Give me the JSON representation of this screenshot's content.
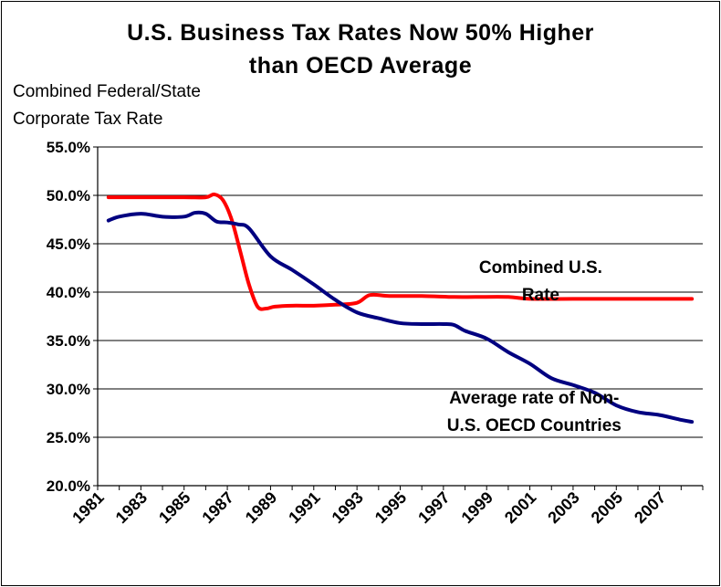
{
  "chart_data": {
    "type": "line",
    "title": "U.S. Business Tax Rates Now 50% Higher\nthan OECD Average",
    "ylabel": "Combined Federal/State\nCorporate Tax Rate",
    "xlabel": "",
    "ylim": [
      20,
      55
    ],
    "xlim": [
      1981,
      2009
    ],
    "y_ticks": [
      "20.0%",
      "25.0%",
      "30.0%",
      "35.0%",
      "40.0%",
      "45.0%",
      "50.0%",
      "55.0%"
    ],
    "y_tick_values": [
      20,
      25,
      30,
      35,
      40,
      45,
      50,
      55
    ],
    "x_ticks": [
      "1981",
      "1983",
      "1985",
      "1987",
      "1989",
      "1991",
      "1993",
      "1995",
      "1997",
      "1999",
      "2001",
      "2003",
      "2005",
      "2007"
    ],
    "x_tick_values": [
      1981,
      1983,
      1985,
      1987,
      1989,
      1991,
      1993,
      1995,
      1997,
      1999,
      2001,
      2003,
      2005,
      2007
    ],
    "grid": "horizontal",
    "series": [
      {
        "name": "Combined U.S. Rate",
        "color": "#ff0000",
        "x": [
          1981.5,
          1983,
          1985,
          1986,
          1986.4,
          1986.8,
          1987.2,
          1987.6,
          1988,
          1988.4,
          1988.8,
          1989.2,
          1990,
          1991,
          1992,
          1993,
          1993.6,
          1994.5,
          1996,
          1997.5,
          1998.5,
          2000,
          2001,
          2003,
          2005,
          2007,
          2008.5
        ],
        "values": [
          49.8,
          49.8,
          49.8,
          49.8,
          50.1,
          49.5,
          47.5,
          44.2,
          40.8,
          38.5,
          38.3,
          38.5,
          38.6,
          38.6,
          38.7,
          38.9,
          39.7,
          39.6,
          39.6,
          39.5,
          39.5,
          39.5,
          39.3,
          39.3,
          39.3,
          39.3,
          39.3
        ]
      },
      {
        "name": "Average rate of Non-U.S. OECD Countries",
        "color": "#000080",
        "x": [
          1981.5,
          1982,
          1983,
          1984,
          1985,
          1985.5,
          1986,
          1986.5,
          1987,
          1987.5,
          1988,
          1989,
          1990,
          1991,
          1992,
          1993,
          1994,
          1995,
          1996,
          1997,
          1997.5,
          1998,
          1999,
          2000,
          2001,
          2002,
          2003,
          2004,
          2005,
          2006,
          2007,
          2008,
          2008.5
        ],
        "values": [
          47.4,
          47.8,
          48.1,
          47.8,
          47.8,
          48.2,
          48.1,
          47.3,
          47.2,
          47.0,
          46.6,
          43.7,
          42.3,
          40.8,
          39.2,
          37.9,
          37.3,
          36.8,
          36.7,
          36.7,
          36.6,
          36.0,
          35.2,
          33.8,
          32.6,
          31.1,
          30.4,
          29.6,
          28.3,
          27.6,
          27.3,
          26.8,
          26.6
        ]
      }
    ],
    "annotations": [
      {
        "line1": "Combined U.S.",
        "line2": "Rate",
        "x": 2001.5,
        "y": 42.0
      },
      {
        "line1": "Average rate of Non-",
        "line2": "U.S. OECD Countries",
        "x": 2001.2,
        "y": 28.5
      }
    ]
  }
}
